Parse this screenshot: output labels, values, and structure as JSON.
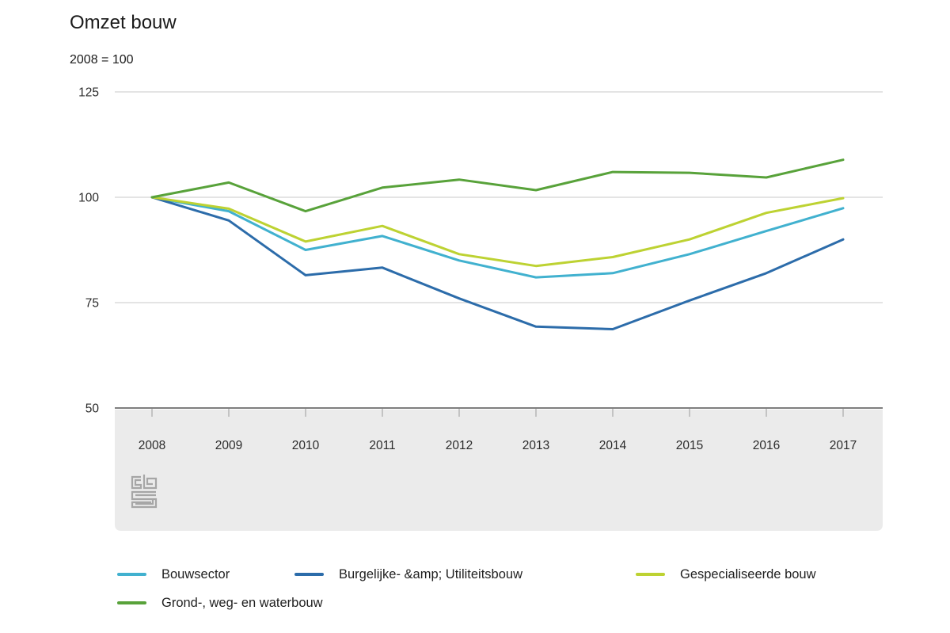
{
  "chart_data": {
    "type": "line",
    "title": "Omzet bouw",
    "subtitle": "2008 = 100",
    "categories": [
      "2008",
      "2009",
      "2010",
      "2011",
      "2012",
      "2013",
      "2014",
      "2015",
      "2016",
      "2017"
    ],
    "series": [
      {
        "name": "Bouwsector",
        "color": "#41b1cf",
        "values": [
          100,
          96.7,
          87.5,
          90.8,
          85,
          81,
          82,
          86.5,
          92,
          97.4
        ]
      },
      {
        "name": "Burgelijke- &amp; Utiliteitsbouw",
        "color": "#2c6caa",
        "values": [
          100,
          94.5,
          81.5,
          83.3,
          76,
          69.3,
          68.7,
          75.5,
          82,
          90
        ]
      },
      {
        "name": "Gespecialiseerde bouw",
        "color": "#bdd232",
        "values": [
          100,
          97.3,
          89.5,
          93.2,
          86.5,
          83.7,
          85.8,
          90,
          96.3,
          99.8
        ]
      },
      {
        "name": "Grond-, weg- en waterbouw",
        "color": "#58a23a",
        "values": [
          100,
          103.5,
          96.7,
          102.3,
          104.2,
          101.7,
          106,
          105.8,
          104.7,
          108.9
        ]
      }
    ],
    "yticks": [
      50,
      75,
      100,
      125
    ],
    "ylim": [
      50,
      129
    ],
    "grid": true,
    "legend_position": "bottom",
    "grid_color": "#c9c9c9",
    "axis_color": "#7f7f7f",
    "band_color": "#ebebeb",
    "tick_color": "#9b9b9b",
    "label_color": "#2b2b2b",
    "logo_color": "#a6a6a6"
  }
}
